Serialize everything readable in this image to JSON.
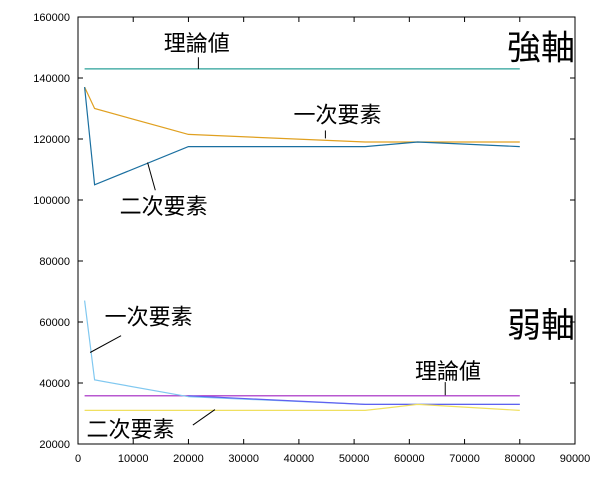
{
  "chart_data": {
    "type": "line",
    "title": "",
    "xlabel": "",
    "ylabel": "",
    "xlim": [
      0,
      90000
    ],
    "ylim": [
      20000,
      160000
    ],
    "x_ticks": [
      0,
      10000,
      20000,
      30000,
      40000,
      50000,
      60000,
      70000,
      80000,
      90000
    ],
    "y_ticks": [
      20000,
      40000,
      60000,
      80000,
      100000,
      120000,
      140000,
      160000
    ],
    "grid": false,
    "legend": "none",
    "series": [
      {
        "color": "#2aa198",
        "points": [
          [
            1200,
            143000
          ],
          [
            80000,
            143000
          ]
        ]
      },
      {
        "color": "#e0a020",
        "points": [
          [
            1200,
            137000
          ],
          [
            3000,
            130000
          ],
          [
            20000,
            121500
          ],
          [
            52000,
            119000
          ],
          [
            61500,
            119000
          ],
          [
            80000,
            119000
          ]
        ]
      },
      {
        "color": "#1a6fa0",
        "points": [
          [
            1200,
            137000
          ],
          [
            3000,
            105000
          ],
          [
            20000,
            117500
          ],
          [
            52000,
            117500
          ],
          [
            61500,
            119000
          ],
          [
            80000,
            117500
          ]
        ]
      },
      {
        "color": "#a020c0",
        "points": [
          [
            1200,
            35800
          ],
          [
            80000,
            35800
          ]
        ]
      },
      {
        "color": "#80c8f0",
        "points": [
          [
            1200,
            67000
          ],
          [
            3000,
            41000
          ],
          [
            20000,
            35500
          ],
          [
            52000,
            33000
          ],
          [
            61500,
            33000
          ],
          [
            80000,
            33000
          ]
        ]
      },
      {
        "color": "#6060f0",
        "points": [
          [
            20000,
            35800
          ],
          [
            52000,
            33000
          ],
          [
            61500,
            33000
          ],
          [
            80000,
            33000
          ]
        ]
      },
      {
        "color": "#f0e060",
        "points": [
          [
            1200,
            31000
          ],
          [
            20000,
            31000
          ],
          [
            52000,
            31000
          ],
          [
            61500,
            33000
          ],
          [
            80000,
            31000
          ]
        ]
      }
    ],
    "annotations": [
      {
        "id": "theory-strong",
        "text": "理論値",
        "text_at": [
          21500,
          151500
        ],
        "leader": [
          [
            21800,
            146800
          ],
          [
            21800,
            143000
          ]
        ]
      },
      {
        "id": "first-order-strong",
        "text": "一次要素",
        "text_at": [
          47000,
          128000
        ],
        "leader": [
          [
            44800,
            122800
          ],
          [
            44800,
            120200
          ]
        ]
      },
      {
        "id": "second-order-strong",
        "text": "二次要素",
        "text_at": [
          15500,
          98000
        ],
        "leader": [
          [
            14000,
            103200
          ],
          [
            12600,
            112300
          ]
        ]
      },
      {
        "id": "first-order-weak",
        "text": "一次要素",
        "text_at": [
          12800,
          61800
        ],
        "leader": [
          [
            7800,
            55500
          ],
          [
            2200,
            50000
          ]
        ]
      },
      {
        "id": "second-order-weak",
        "text": "二次要素",
        "text_at": [
          9500,
          25000
        ],
        "leader": [
          [
            20800,
            26200
          ],
          [
            24800,
            31300
          ]
        ]
      },
      {
        "id": "theory-weak",
        "text": "理論値",
        "text_at": [
          67000,
          44000
        ],
        "leader": [
          [
            66500,
            40300
          ],
          [
            66500,
            36000
          ]
        ]
      }
    ],
    "corner_labels": [
      {
        "id": "strong-axis",
        "text": "強軸",
        "y_value": 150000
      },
      {
        "id": "weak-axis",
        "text": "弱軸",
        "y_value": 59000
      }
    ]
  }
}
